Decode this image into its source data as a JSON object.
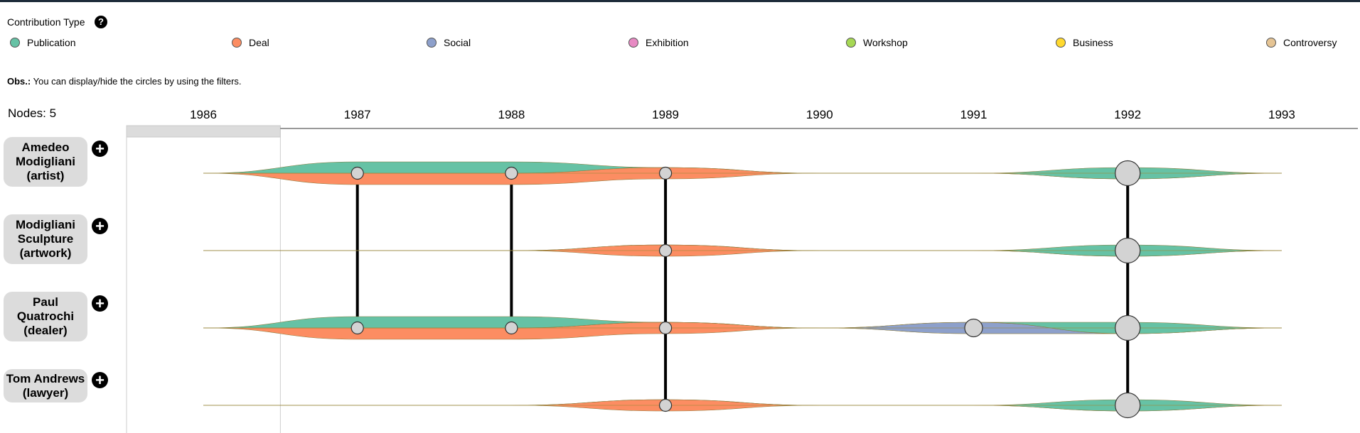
{
  "legend": {
    "title": "Contribution Type",
    "help_symbol": "?",
    "items": [
      {
        "label": "Publication",
        "color": "#66c2a5"
      },
      {
        "label": "Deal",
        "color": "#fc8d62"
      },
      {
        "label": "Social",
        "color": "#8da0cb"
      },
      {
        "label": "Exhibition",
        "color": "#e78ac3"
      },
      {
        "label": "Workshop",
        "color": "#a6d854"
      },
      {
        "label": "Business",
        "color": "#ffd92f"
      },
      {
        "label": "Controversy",
        "color": "#e5c494"
      }
    ]
  },
  "obs": {
    "prefix": "Obs.:",
    "text": "You can display/hide the circles by using the filters."
  },
  "nodes_label": "Nodes: 5",
  "plus_symbol": "+",
  "chart_data": {
    "type": "streamgraph",
    "x": [
      1986,
      1987,
      1988,
      1989,
      1990,
      1991,
      1992,
      1993
    ],
    "xlim": [
      1986,
      1993
    ],
    "brush_range": [
      1985.5,
      1986.5
    ],
    "colors": {
      "Publication": "#66c2a5",
      "Deal": "#fc8d62",
      "Social": "#8da0cb"
    },
    "entities": [
      {
        "label": "Amedeo Modigliani (artist)",
        "series": {
          "Deal": [
            0,
            1,
            1,
            1,
            0,
            0,
            0,
            0
          ],
          "Social": [
            0,
            0,
            0,
            0,
            0,
            0,
            0,
            0
          ],
          "Publication": [
            0,
            1,
            1,
            0,
            0,
            0,
            1,
            0
          ]
        },
        "events": [
          {
            "year": 1987,
            "size": 1
          },
          {
            "year": 1988,
            "size": 1
          },
          {
            "year": 1989,
            "size": 1
          },
          {
            "year": 1992,
            "size": 2
          }
        ]
      },
      {
        "label": "Modigliani Sculpture (artwork)",
        "series": {
          "Deal": [
            0,
            0,
            0,
            1,
            0,
            0,
            0,
            0
          ],
          "Social": [
            0,
            0,
            0,
            0,
            0,
            0,
            0,
            0
          ],
          "Publication": [
            0,
            0,
            0,
            0,
            0,
            0,
            1,
            0
          ]
        },
        "events": [
          {
            "year": 1989,
            "size": 1
          },
          {
            "year": 1992,
            "size": 2
          }
        ]
      },
      {
        "label": "Paul Quatrochi (dealer)",
        "series": {
          "Deal": [
            0,
            1,
            1,
            1,
            0,
            0,
            0,
            0
          ],
          "Social": [
            0,
            0,
            0,
            0,
            0,
            1,
            0,
            0
          ],
          "Publication": [
            0,
            1,
            1,
            0,
            0,
            0,
            1,
            0
          ]
        },
        "events": [
          {
            "year": 1987,
            "size": 1
          },
          {
            "year": 1988,
            "size": 1
          },
          {
            "year": 1989,
            "size": 1
          },
          {
            "year": 1991,
            "size": 1.5
          },
          {
            "year": 1992,
            "size": 2
          }
        ]
      },
      {
        "label": "Tom Andrews (lawyer)",
        "series": {
          "Deal": [
            0,
            0,
            0,
            1,
            0,
            0,
            0,
            0
          ],
          "Social": [
            0,
            0,
            0,
            0,
            0,
            0,
            0,
            0
          ],
          "Publication": [
            0,
            0,
            0,
            0,
            0,
            0,
            1,
            0
          ]
        },
        "events": [
          {
            "year": 1989,
            "size": 1
          },
          {
            "year": 1992,
            "size": 2
          }
        ]
      }
    ],
    "links": [
      {
        "year": 1987,
        "from": 0,
        "to": 2
      },
      {
        "year": 1988,
        "from": 0,
        "to": 2
      },
      {
        "year": 1989,
        "from": 0,
        "to": 3
      },
      {
        "year": 1992,
        "from": 0,
        "to": 3
      }
    ]
  }
}
